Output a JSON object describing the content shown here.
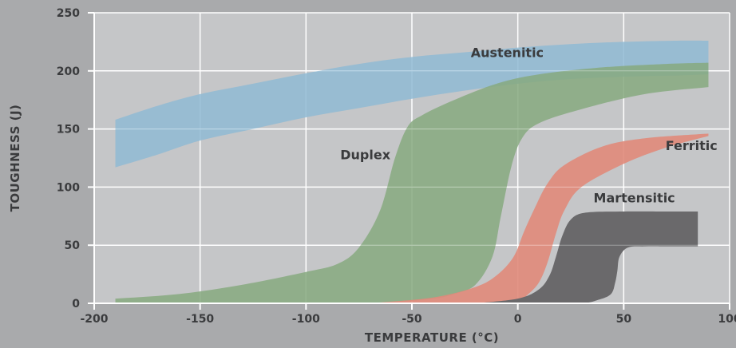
{
  "chart_data": {
    "type": "area",
    "xlabel": "TEMPERATURE (°C)",
    "ylabel": "TOUGHNESS (J)",
    "xlim": [
      -200,
      100
    ],
    "ylim": [
      0,
      250
    ],
    "x_ticks": [
      -200,
      -150,
      -100,
      -50,
      0,
      50,
      100
    ],
    "x_tick_labels": [
      "-200",
      "-150",
      "-100",
      "-50",
      "0",
      "50",
      "100"
    ],
    "y_ticks": [
      0,
      50,
      100,
      150,
      200,
      250
    ],
    "y_tick_labels": [
      "0",
      "50",
      "100",
      "150",
      "200",
      "250"
    ],
    "grid": true,
    "series": [
      {
        "name": "Austenitic",
        "color": "#8fbad3",
        "label_at": [
          -5,
          212
        ],
        "upper": [
          [
            -190,
            158
          ],
          [
            -170,
            170
          ],
          [
            -150,
            180
          ],
          [
            -125,
            189
          ],
          [
            -100,
            198
          ],
          [
            -75,
            206
          ],
          [
            -50,
            212
          ],
          [
            -25,
            216
          ],
          [
            0,
            220
          ],
          [
            25,
            223
          ],
          [
            50,
            225
          ],
          [
            75,
            226
          ],
          [
            90,
            226
          ]
        ],
        "lower": [
          [
            -190,
            117
          ],
          [
            -170,
            128
          ],
          [
            -150,
            140
          ],
          [
            -125,
            150
          ],
          [
            -100,
            160
          ],
          [
            -75,
            168
          ],
          [
            -50,
            176
          ],
          [
            -25,
            183
          ],
          [
            0,
            189
          ],
          [
            25,
            193
          ],
          [
            50,
            195
          ],
          [
            75,
            196
          ],
          [
            90,
            197
          ]
        ]
      },
      {
        "name": "Duplex",
        "color": "#86a97f",
        "label_at": [
          -72,
          124
        ],
        "upper": [
          [
            -190,
            4
          ],
          [
            -160,
            8
          ],
          [
            -130,
            16
          ],
          [
            -100,
            27
          ],
          [
            -85,
            34
          ],
          [
            -75,
            48
          ],
          [
            -65,
            80
          ],
          [
            -58,
            125
          ],
          [
            -52,
            152
          ],
          [
            -45,
            162
          ],
          [
            -30,
            175
          ],
          [
            -10,
            189
          ],
          [
            10,
            197
          ],
          [
            40,
            203
          ],
          [
            70,
            206
          ],
          [
            90,
            207
          ]
        ],
        "lower": [
          [
            -190,
            0
          ],
          [
            -150,
            0
          ],
          [
            -100,
            0
          ],
          [
            -60,
            1
          ],
          [
            -40,
            4
          ],
          [
            -30,
            8
          ],
          [
            -20,
            16
          ],
          [
            -12,
            40
          ],
          [
            -8,
            75
          ],
          [
            -3,
            118
          ],
          [
            2,
            142
          ],
          [
            10,
            155
          ],
          [
            30,
            167
          ],
          [
            60,
            180
          ],
          [
            90,
            186
          ]
        ]
      },
      {
        "name": "Ferritic",
        "color": "#e0897a",
        "label_at": [
          82,
          132
        ],
        "upper": [
          [
            -70,
            0
          ],
          [
            -40,
            5
          ],
          [
            -20,
            14
          ],
          [
            -10,
            24
          ],
          [
            -2,
            40
          ],
          [
            3,
            62
          ],
          [
            8,
            82
          ],
          [
            14,
            103
          ],
          [
            22,
            119
          ],
          [
            40,
            135
          ],
          [
            60,
            142
          ],
          [
            90,
            146
          ]
        ],
        "lower": [
          [
            -70,
            0
          ],
          [
            -40,
            0
          ],
          [
            -10,
            0
          ],
          [
            0,
            2
          ],
          [
            5,
            8
          ],
          [
            10,
            18
          ],
          [
            14,
            35
          ],
          [
            18,
            60
          ],
          [
            22,
            80
          ],
          [
            30,
            100
          ],
          [
            50,
            120
          ],
          [
            70,
            134
          ],
          [
            90,
            144
          ]
        ]
      },
      {
        "name": "Martensitic",
        "color": "#6a696b",
        "label_at": [
          55,
          87
        ],
        "upper": [
          [
            -20,
            0
          ],
          [
            0,
            4
          ],
          [
            10,
            12
          ],
          [
            15,
            24
          ],
          [
            18,
            40
          ],
          [
            21,
            58
          ],
          [
            25,
            72
          ],
          [
            32,
            78
          ],
          [
            50,
            79
          ],
          [
            70,
            79
          ],
          [
            85,
            79
          ]
        ],
        "lower": [
          [
            -20,
            0
          ],
          [
            10,
            0
          ],
          [
            30,
            0
          ],
          [
            38,
            3
          ],
          [
            44,
            8
          ],
          [
            46,
            18
          ],
          [
            47,
            28
          ],
          [
            48,
            40
          ],
          [
            52,
            48
          ],
          [
            60,
            49
          ],
          [
            70,
            49
          ],
          [
            85,
            49
          ]
        ]
      }
    ]
  }
}
